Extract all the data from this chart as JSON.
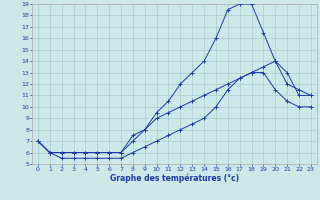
{
  "xlabel": "Graphe des températures (°c)",
  "background_color": "#cce8e8",
  "grid_color": "#aacccc",
  "line_color": "#1a3aaa",
  "xlim": [
    -0.5,
    23.5
  ],
  "ylim": [
    5,
    19
  ],
  "xticks": [
    0,
    1,
    2,
    3,
    4,
    5,
    6,
    7,
    8,
    9,
    10,
    11,
    12,
    13,
    14,
    15,
    16,
    17,
    18,
    19,
    20,
    21,
    22,
    23
  ],
  "yticks": [
    5,
    6,
    7,
    8,
    9,
    10,
    11,
    12,
    13,
    14,
    15,
    16,
    17,
    18,
    19
  ],
  "series1_x": [
    0,
    1,
    2,
    3,
    4,
    5,
    6,
    7,
    8,
    9,
    10,
    11,
    12,
    13,
    14,
    15,
    16,
    17,
    18,
    19,
    20,
    21,
    22,
    23
  ],
  "series1_y": [
    7.0,
    6.0,
    6.0,
    6.0,
    6.0,
    6.0,
    6.0,
    6.0,
    7.0,
    8.0,
    9.5,
    10.5,
    12.0,
    13.0,
    14.0,
    16.0,
    18.5,
    19.0,
    19.0,
    16.5,
    14.0,
    12.0,
    11.5,
    11.0
  ],
  "series2_x": [
    0,
    1,
    2,
    3,
    4,
    5,
    6,
    7,
    8,
    9,
    10,
    11,
    12,
    13,
    14,
    15,
    16,
    17,
    18,
    19,
    20,
    21,
    22,
    23
  ],
  "series2_y": [
    7.0,
    6.0,
    6.0,
    6.0,
    6.0,
    6.0,
    6.0,
    6.0,
    7.5,
    8.0,
    9.0,
    9.5,
    10.0,
    10.5,
    11.0,
    11.5,
    12.0,
    12.5,
    13.0,
    13.5,
    14.0,
    13.0,
    11.0,
    11.0
  ],
  "series3_x": [
    0,
    1,
    2,
    3,
    4,
    5,
    6,
    7,
    8,
    9,
    10,
    11,
    12,
    13,
    14,
    15,
    16,
    17,
    18,
    19,
    20,
    21,
    22,
    23
  ],
  "series3_y": [
    7.0,
    6.0,
    5.5,
    5.5,
    5.5,
    5.5,
    5.5,
    5.5,
    6.0,
    6.5,
    7.0,
    7.5,
    8.0,
    8.5,
    9.0,
    10.0,
    11.5,
    12.5,
    13.0,
    13.0,
    11.5,
    10.5,
    10.0,
    10.0
  ]
}
